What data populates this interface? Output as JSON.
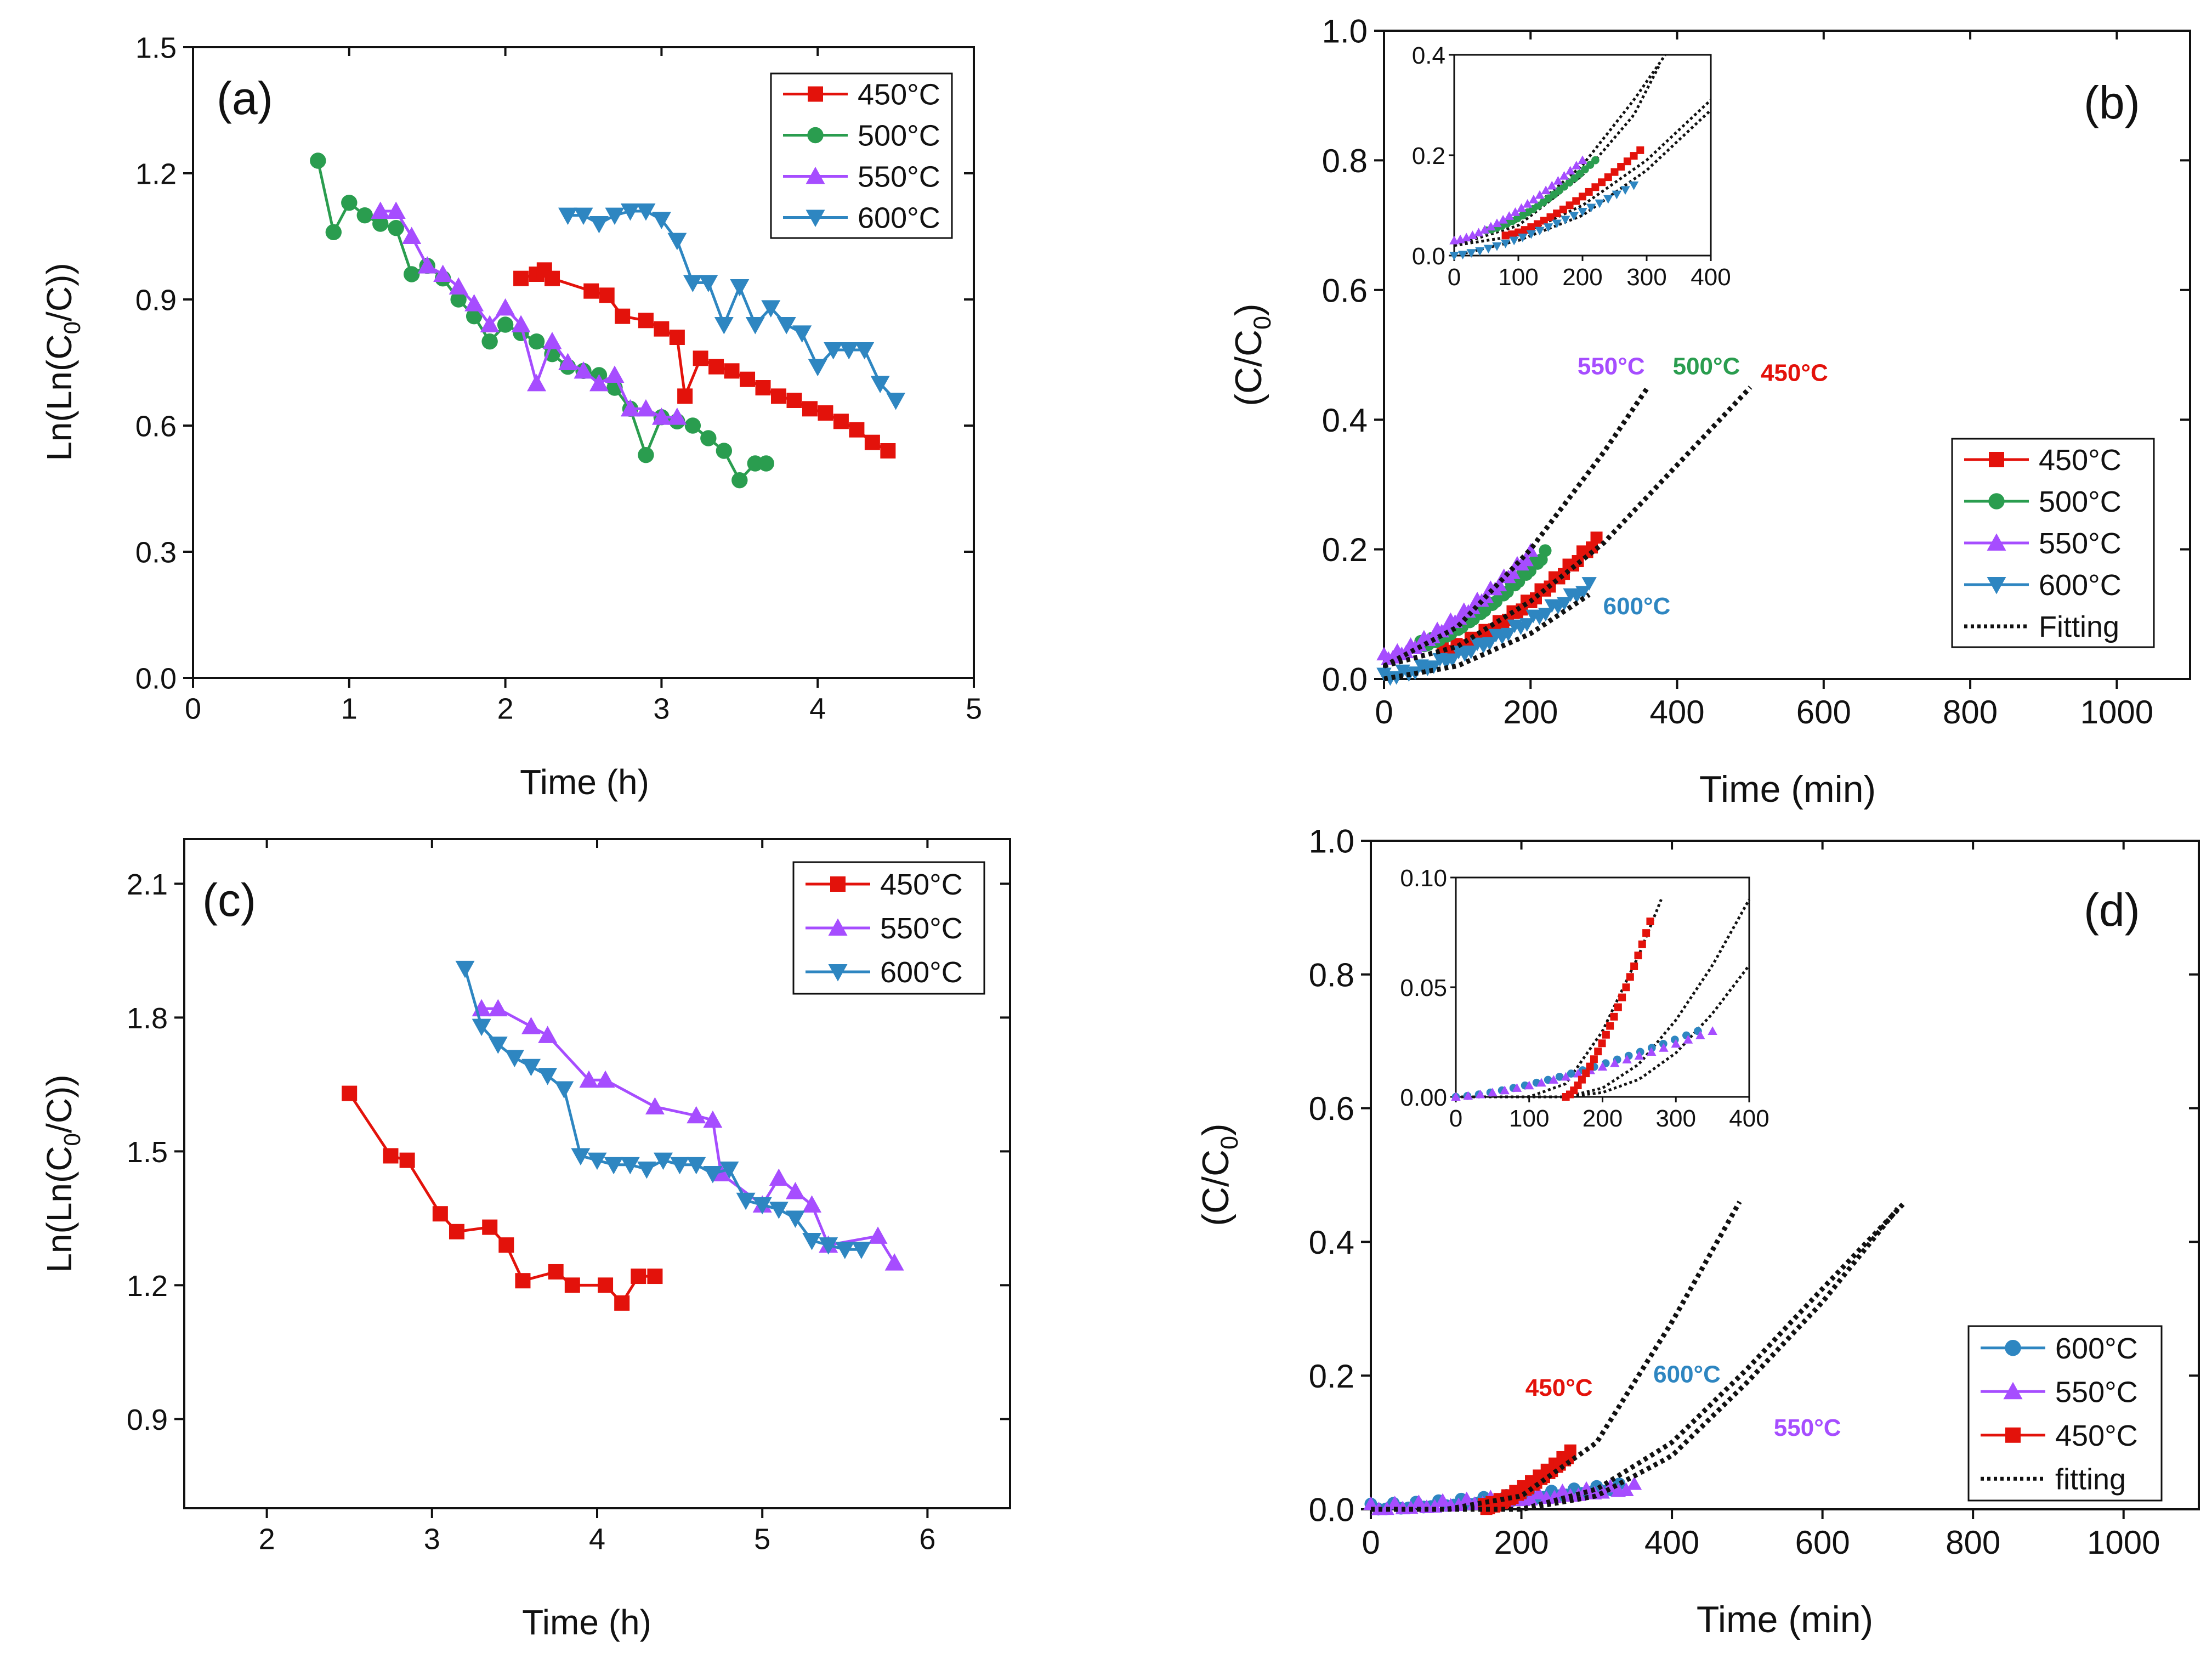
{
  "chart_data": [
    {
      "id": "a",
      "type": "line",
      "panel_label": "(a)",
      "xlabel": "Time (h)",
      "ylabel": "Ln(Ln(C0/C))",
      "ylabel_parts": [
        "Ln(Ln(C",
        "0",
        "/C))"
      ],
      "xlim": [
        0,
        5
      ],
      "ylim": [
        0,
        1.5
      ],
      "xticks": [
        "0",
        "1",
        "2",
        "3",
        "4",
        "5"
      ],
      "yticks": [
        "0.0",
        "0.3",
        "0.6",
        "0.9",
        "1.2",
        "1.5"
      ],
      "legend_position": "top-right",
      "series": [
        {
          "name": "450°C",
          "color": "#e3120b",
          "marker": "square",
          "x": [
            2.1,
            2.2,
            2.25,
            2.3,
            2.55,
            2.65,
            2.75,
            2.9,
            3.0,
            3.1,
            3.15,
            3.25,
            3.35,
            3.45,
            3.55,
            3.65,
            3.75,
            3.85,
            3.95,
            4.05,
            4.15,
            4.25,
            4.35,
            4.45
          ],
          "y": [
            0.95,
            0.96,
            0.97,
            0.95,
            0.92,
            0.91,
            0.86,
            0.85,
            0.83,
            0.81,
            0.67,
            0.76,
            0.74,
            0.73,
            0.71,
            0.69,
            0.67,
            0.66,
            0.64,
            0.63,
            0.61,
            0.59,
            0.56,
            0.54
          ]
        },
        {
          "name": "500°C",
          "color": "#2a9d4f",
          "marker": "circle",
          "x": [
            0.8,
            0.9,
            1.0,
            1.1,
            1.2,
            1.3,
            1.4,
            1.5,
            1.6,
            1.7,
            1.8,
            1.9,
            2.0,
            2.1,
            2.2,
            2.3,
            2.4,
            2.5,
            2.6,
            2.7,
            2.8,
            2.9,
            3.0,
            3.1,
            3.2,
            3.3,
            3.4,
            3.5,
            3.6,
            3.67
          ],
          "y": [
            1.23,
            1.06,
            1.13,
            1.1,
            1.08,
            1.07,
            0.96,
            0.98,
            0.95,
            0.9,
            0.86,
            0.8,
            0.84,
            0.82,
            0.8,
            0.77,
            0.74,
            0.73,
            0.72,
            0.69,
            0.64,
            0.53,
            0.62,
            0.61,
            0.6,
            0.57,
            0.54,
            0.47,
            0.51,
            0.51
          ]
        },
        {
          "name": "550°C",
          "color": "#a64dff",
          "marker": "triangle-up",
          "x": [
            1.2,
            1.3,
            1.4,
            1.5,
            1.6,
            1.7,
            1.8,
            1.9,
            2.0,
            2.1,
            2.2,
            2.3,
            2.4,
            2.5,
            2.6,
            2.7,
            2.8,
            2.9,
            3.0,
            3.1
          ],
          "y": [
            1.11,
            1.11,
            1.05,
            0.98,
            0.96,
            0.93,
            0.89,
            0.84,
            0.88,
            0.84,
            0.7,
            0.8,
            0.75,
            0.73,
            0.7,
            0.72,
            0.64,
            0.64,
            0.62,
            0.62
          ]
        },
        {
          "name": "600°C",
          "color": "#2e86c1",
          "marker": "triangle-down",
          "x": [
            2.4,
            2.5,
            2.6,
            2.7,
            2.8,
            2.9,
            3.0,
            3.1,
            3.2,
            3.3,
            3.4,
            3.5,
            3.6,
            3.7,
            3.8,
            3.9,
            4.0,
            4.1,
            4.2,
            4.3,
            4.4,
            4.5
          ],
          "y": [
            1.1,
            1.1,
            1.08,
            1.1,
            1.11,
            1.11,
            1.09,
            1.04,
            0.94,
            0.94,
            0.84,
            0.93,
            0.84,
            0.88,
            0.84,
            0.82,
            0.74,
            0.78,
            0.78,
            0.78,
            0.7,
            0.66
          ]
        }
      ]
    },
    {
      "id": "b",
      "type": "scatter",
      "panel_label": "(b)",
      "xlabel": "Time (min)",
      "ylabel": "(C/C0)",
      "ylabel_parts": [
        "(C/C",
        "0",
        ")"
      ],
      "xlim": [
        0,
        1100
      ],
      "ylim": [
        0,
        1.0
      ],
      "xticks": [
        "0",
        "200",
        "400",
        "600",
        "800",
        "1000"
      ],
      "yticks": [
        "0.0",
        "0.2",
        "0.4",
        "0.6",
        "0.8",
        "1.0"
      ],
      "legend_position": "bottom-right",
      "series": [
        {
          "name": "450°C",
          "color": "#e3120b",
          "marker": "square",
          "x_start": 80,
          "x_end": 290,
          "y_start": 0.04,
          "y_end": 0.21
        },
        {
          "name": "500°C",
          "color": "#2a9d4f",
          "marker": "circle",
          "x_start": 50,
          "x_end": 220,
          "y_start": 0.05,
          "y_end": 0.19
        },
        {
          "name": "550°C",
          "color": "#a64dff",
          "marker": "triangle-up",
          "x_start": 0,
          "x_end": 200,
          "y_start": 0.03,
          "y_end": 0.19
        },
        {
          "name": "600°C",
          "color": "#2e86c1",
          "marker": "triangle-down",
          "x_start": 0,
          "x_end": 280,
          "y_start": 0.0,
          "y_end": 0.14
        }
      ],
      "fitting": {
        "name": "Fitting",
        "curves": [
          {
            "x": [
              0,
              100,
              200,
              300,
              360
            ],
            "y": [
              0.02,
              0.08,
              0.2,
              0.35,
              0.45
            ]
          },
          {
            "x": [
              0,
              100,
              200,
              300,
              400,
              500
            ],
            "y": [
              0.02,
              0.05,
              0.12,
              0.21,
              0.33,
              0.45
            ]
          },
          {
            "x": [
              0,
              100,
              200,
              280
            ],
            "y": [
              0.0,
              0.02,
              0.07,
              0.13
            ]
          }
        ]
      },
      "annotations": [
        {
          "text": "550°C",
          "color": "#a64dff",
          "x": 310,
          "y": 0.47
        },
        {
          "text": "500°C",
          "color": "#2a9d4f",
          "x": 440,
          "y": 0.47
        },
        {
          "text": "450°C",
          "color": "#e3120b",
          "x": 560,
          "y": 0.46
        },
        {
          "text": "600°C",
          "color": "#2e86c1",
          "x": 345,
          "y": 0.1
        }
      ],
      "inset": {
        "xlim": [
          0,
          400
        ],
        "ylim": [
          0,
          0.4
        ],
        "xticks": [
          "0",
          "100",
          "200",
          "300",
          "400"
        ],
        "yticks": [
          "0.0",
          "0.2",
          "0.4"
        ],
        "fitting_curves": [
          {
            "x": [
              0,
              100,
              200,
              280,
              340
            ],
            "y": [
              0.02,
              0.07,
              0.18,
              0.31,
              0.42
            ]
          },
          {
            "x": [
              0,
              100,
              200,
              280,
              320
            ],
            "y": [
              0.02,
              0.06,
              0.16,
              0.28,
              0.38
            ]
          },
          {
            "x": [
              0,
              100,
              200,
              300,
              400
            ],
            "y": [
              0.02,
              0.04,
              0.1,
              0.19,
              0.31
            ]
          },
          {
            "x": [
              0,
              100,
              200,
              300,
              400
            ],
            "y": [
              0.0,
              0.03,
              0.08,
              0.17,
              0.29
            ]
          }
        ]
      }
    },
    {
      "id": "c",
      "type": "line",
      "panel_label": "(c)",
      "xlabel": "Time (h)",
      "ylabel": "Ln(Ln(C0/C))",
      "ylabel_parts": [
        "Ln(Ln(C",
        "0",
        "/C))"
      ],
      "xlim": [
        1.5,
        6.5
      ],
      "ylim": [
        0.7,
        2.2
      ],
      "xticks": [
        "2",
        "3",
        "4",
        "5",
        "6"
      ],
      "yticks": [
        "0.9",
        "1.2",
        "1.5",
        "1.8",
        "2.1"
      ],
      "legend_position": "top-right",
      "series": [
        {
          "name": "450°C",
          "color": "#e3120b",
          "marker": "square",
          "x": [
            2.5,
            2.75,
            2.85,
            3.05,
            3.15,
            3.35,
            3.45,
            3.55,
            3.75,
            3.85,
            4.05,
            4.15,
            4.25,
            4.35
          ],
          "y": [
            1.63,
            1.49,
            1.48,
            1.36,
            1.32,
            1.33,
            1.29,
            1.21,
            1.23,
            1.2,
            1.2,
            1.16,
            1.22,
            1.22
          ]
        },
        {
          "name": "550°C",
          "color": "#a64dff",
          "marker": "triangle-up",
          "x": [
            3.3,
            3.4,
            3.6,
            3.7,
            3.95,
            4.05,
            4.35,
            4.6,
            4.7,
            4.75,
            5.0,
            5.1,
            5.2,
            5.3,
            5.4,
            5.7,
            5.8
          ],
          "y": [
            1.82,
            1.82,
            1.78,
            1.76,
            1.66,
            1.66,
            1.6,
            1.58,
            1.57,
            1.45,
            1.38,
            1.44,
            1.41,
            1.38,
            1.29,
            1.31,
            1.25
          ]
        },
        {
          "name": "600°C",
          "color": "#2e86c1",
          "marker": "triangle-down",
          "x": [
            3.2,
            3.3,
            3.4,
            3.5,
            3.6,
            3.7,
            3.8,
            3.9,
            4.0,
            4.1,
            4.2,
            4.3,
            4.4,
            4.5,
            4.6,
            4.7,
            4.8,
            4.9,
            5.0,
            5.1,
            5.2,
            5.3,
            5.4,
            5.5,
            5.6
          ],
          "y": [
            1.91,
            1.78,
            1.74,
            1.71,
            1.69,
            1.67,
            1.64,
            1.49,
            1.48,
            1.47,
            1.47,
            1.46,
            1.48,
            1.47,
            1.47,
            1.45,
            1.46,
            1.39,
            1.38,
            1.37,
            1.35,
            1.3,
            1.29,
            1.28,
            1.28
          ]
        }
      ]
    },
    {
      "id": "d",
      "type": "scatter",
      "panel_label": "(d)",
      "xlabel": "Time (min)",
      "ylabel": "(C/C0)",
      "ylabel_parts": [
        "(C/C",
        "0",
        ")"
      ],
      "xlim": [
        0,
        1100
      ],
      "ylim": [
        0,
        1.0
      ],
      "xticks": [
        "0",
        "200",
        "400",
        "600",
        "800",
        "1000"
      ],
      "yticks": [
        "0.0",
        "0.2",
        "0.4",
        "0.6",
        "0.8",
        "1.0"
      ],
      "legend_position": "bottom-right",
      "series": [
        {
          "name": "600°C",
          "color": "#2e86c1",
          "marker": "circle",
          "x_start": 0,
          "x_end": 330,
          "y_start": 0.0,
          "y_end": 0.03
        },
        {
          "name": "550°C",
          "color": "#a64dff",
          "marker": "triangle-up",
          "x_start": 0,
          "x_end": 350,
          "y_start": 0.0,
          "y_end": 0.03
        },
        {
          "name": "450°C",
          "color": "#e3120b",
          "marker": "square",
          "x_start": 150,
          "x_end": 265,
          "y_start": 0.0,
          "y_end": 0.08
        }
      ],
      "fitting": {
        "name": "fitting",
        "curves": [
          {
            "x": [
              0,
              100,
              200,
              300,
              400,
              490
            ],
            "y": [
              0.0,
              0.0,
              0.02,
              0.1,
              0.28,
              0.46
            ]
          },
          {
            "x": [
              0,
              200,
              300,
              400,
              500,
              600,
              710
            ],
            "y": [
              0.0,
              0.0,
              0.03,
              0.1,
              0.21,
              0.33,
              0.46
            ]
          },
          {
            "x": [
              0,
              200,
              300,
              400,
              500,
              600,
              700
            ],
            "y": [
              0.0,
              0.0,
              0.02,
              0.08,
              0.19,
              0.31,
              0.45
            ]
          }
        ]
      },
      "annotations": [
        {
          "text": "450°C",
          "color": "#e3120b",
          "x": 250,
          "y": 0.17
        },
        {
          "text": "600°C",
          "color": "#2e86c1",
          "x": 420,
          "y": 0.19
        },
        {
          "text": "550°C",
          "color": "#a64dff",
          "x": 580,
          "y": 0.11
        }
      ],
      "inset": {
        "xlim": [
          0,
          400
        ],
        "ylim": [
          0,
          0.1
        ],
        "xticks": [
          "0",
          "100",
          "200",
          "300",
          "400"
        ],
        "yticks": [
          "0.00",
          "0.05",
          "0.10"
        ],
        "fitting_curves": [
          {
            "x": [
              0,
              100,
              150,
              200,
              250,
              280
            ],
            "y": [
              0.0,
              0.0,
              0.006,
              0.03,
              0.065,
              0.09
            ]
          },
          {
            "x": [
              0,
              150,
              200,
              250,
              300,
              350,
              400
            ],
            "y": [
              0.0,
              0.0,
              0.004,
              0.015,
              0.035,
              0.06,
              0.09
            ]
          },
          {
            "x": [
              0,
              150,
              200,
              250,
              300,
              350,
              400
            ],
            "y": [
              0.0,
              0.0,
              0.002,
              0.008,
              0.02,
              0.038,
              0.06
            ]
          }
        ]
      }
    }
  ]
}
